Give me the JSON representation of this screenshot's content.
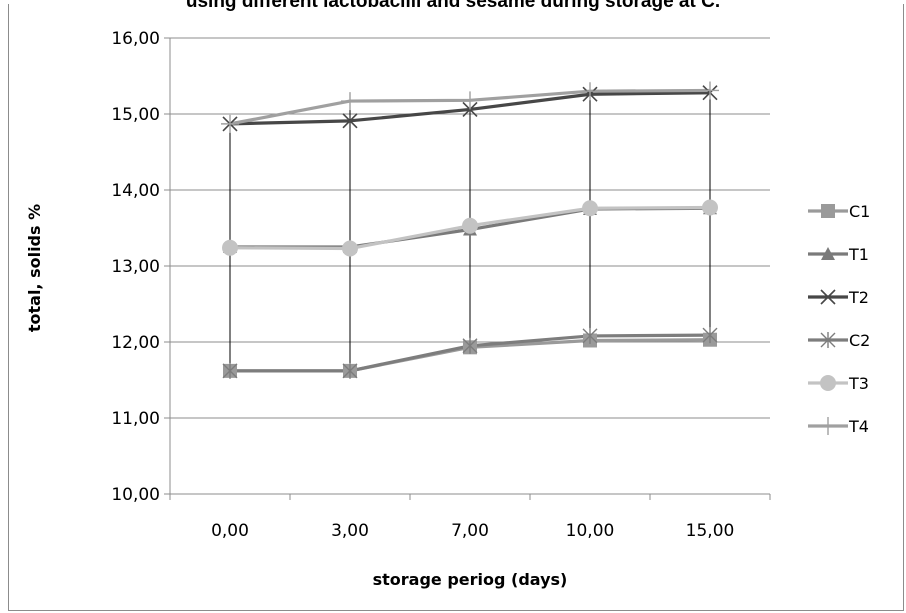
{
  "chart_data": {
    "type": "line",
    "title": "using different lactobacilli and sesame during storage at      C.",
    "xlabel": "storage periog (days)",
    "ylabel": "total, solids %",
    "categories": [
      "0,00",
      "3,00",
      "7,00",
      "10,00",
      "15,00"
    ],
    "y_ticks": [
      "10,00",
      "11,00",
      "12,00",
      "13,00",
      "14,00",
      "15,00",
      "16,00"
    ],
    "ylim": [
      10,
      16
    ],
    "grid": "horizontal",
    "high_low_lines": true,
    "legend_position": "right",
    "series": [
      {
        "name": "C1",
        "marker": "square",
        "color": "#9a9a9a",
        "values": [
          11.62,
          11.62,
          11.93,
          12.02,
          12.03
        ]
      },
      {
        "name": "T1",
        "marker": "triangle",
        "color": "#7a7a7a",
        "values": [
          13.25,
          13.25,
          13.48,
          13.75,
          13.76
        ]
      },
      {
        "name": "T2",
        "marker": "x",
        "color": "#474747",
        "values": [
          14.87,
          14.91,
          15.06,
          15.26,
          15.28
        ]
      },
      {
        "name": "C2",
        "marker": "star",
        "color": "#7d7d7d",
        "values": [
          11.62,
          11.62,
          11.95,
          12.08,
          12.09
        ]
      },
      {
        "name": "T3",
        "marker": "circle",
        "color": "#c3c3c3",
        "values": [
          13.24,
          13.23,
          13.53,
          13.76,
          13.77
        ]
      },
      {
        "name": "T4",
        "marker": "plus",
        "color": "#a0a0a0",
        "values": [
          14.87,
          15.17,
          15.18,
          15.3,
          15.31
        ]
      }
    ]
  }
}
